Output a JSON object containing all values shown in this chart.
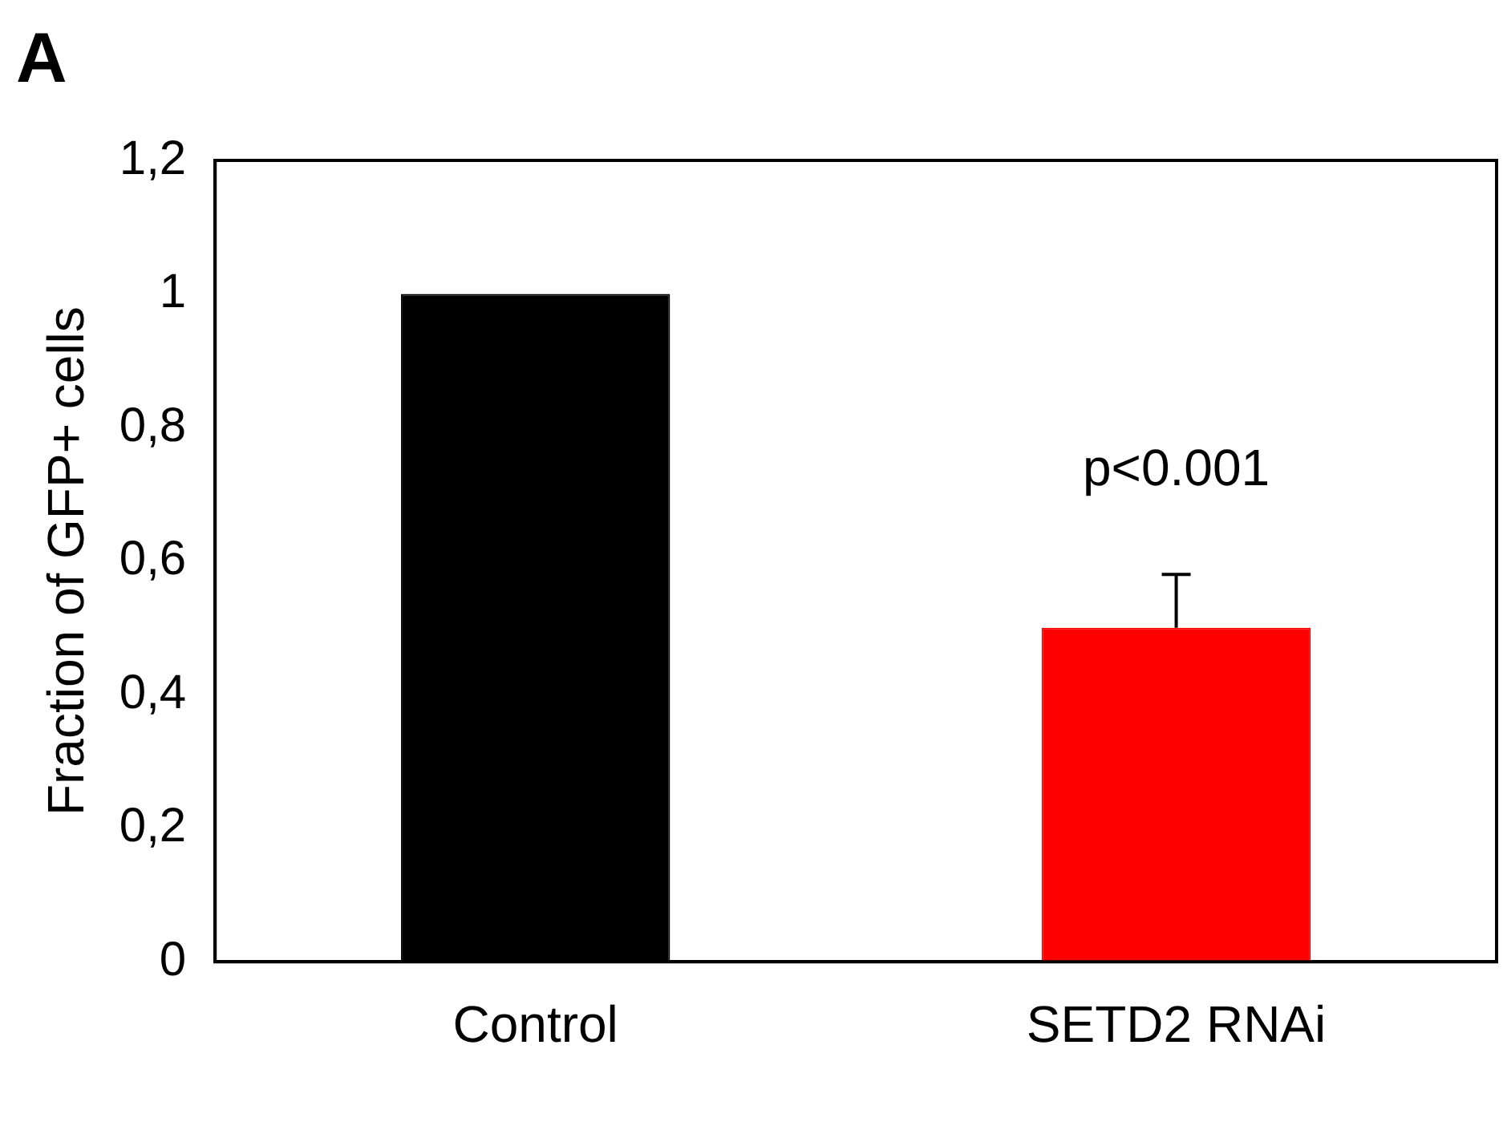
{
  "chart_data": {
    "type": "bar",
    "title": "A",
    "ylabel": "Fraction of GFP+ cells",
    "categories": [
      "Control",
      "SETD2 RNAi"
    ],
    "values": [
      1.0,
      0.5
    ],
    "colors": [
      "#000000",
      "#ff0000"
    ],
    "errors": [
      null,
      [
        0.5,
        0.58
      ]
    ],
    "ylim": [
      0,
      1.2
    ],
    "yticks": [
      {
        "value": 0,
        "label": "0"
      },
      {
        "value": 0.2,
        "label": "0,2"
      },
      {
        "value": 0.4,
        "label": "0,4"
      },
      {
        "value": 0.6,
        "label": "0,6"
      },
      {
        "value": 0.8,
        "label": "0,8"
      },
      {
        "value": 1,
        "label": "1"
      },
      {
        "value": 1.2,
        "label": "1,2"
      }
    ],
    "annotations": [
      "p<0.001"
    ],
    "grid": false,
    "legend": false
  }
}
